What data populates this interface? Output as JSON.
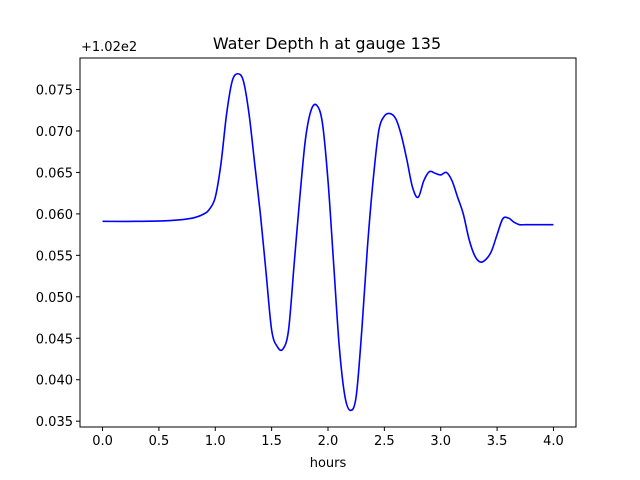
{
  "chart_data": {
    "type": "line",
    "title": "Water Depth h at gauge 135",
    "xlabel": "hours",
    "ylabel": "",
    "offset_label": "+1.02e2",
    "xlim": [
      -0.2,
      4.2
    ],
    "ylim": [
      0.0343,
      0.0788
    ],
    "xticks": [
      0.0,
      0.5,
      1.0,
      1.5,
      2.0,
      2.5,
      3.0,
      3.5,
      4.0
    ],
    "xtick_labels": [
      "0.0",
      "0.5",
      "1.0",
      "1.5",
      "2.0",
      "2.5",
      "3.0",
      "3.5",
      "4.0"
    ],
    "yticks": [
      0.035,
      0.04,
      0.045,
      0.05,
      0.055,
      0.06,
      0.065,
      0.07,
      0.075
    ],
    "ytick_labels": [
      "0.035",
      "0.040",
      "0.045",
      "0.050",
      "0.055",
      "0.060",
      "0.065",
      "0.070",
      "0.075"
    ],
    "grid": false,
    "series": [
      {
        "color": "#0000ff",
        "x": [
          0.0,
          0.3,
          0.6,
          0.8,
          0.9,
          0.95,
          1.0,
          1.05,
          1.1,
          1.15,
          1.2,
          1.25,
          1.3,
          1.35,
          1.4,
          1.45,
          1.5,
          1.55,
          1.6,
          1.65,
          1.7,
          1.75,
          1.8,
          1.85,
          1.9,
          1.95,
          2.0,
          2.05,
          2.1,
          2.15,
          2.2,
          2.25,
          2.3,
          2.35,
          2.4,
          2.45,
          2.5,
          2.55,
          2.6,
          2.65,
          2.7,
          2.75,
          2.8,
          2.85,
          2.9,
          2.95,
          3.0,
          3.05,
          3.1,
          3.15,
          3.2,
          3.25,
          3.3,
          3.35,
          3.4,
          3.45,
          3.5,
          3.55,
          3.6,
          3.65,
          3.7,
          3.75,
          3.8,
          3.85,
          3.9,
          3.95,
          4.0
        ],
        "y": [
          0.0591,
          0.0591,
          0.0592,
          0.0595,
          0.06,
          0.0606,
          0.062,
          0.066,
          0.072,
          0.076,
          0.0769,
          0.076,
          0.072,
          0.066,
          0.06,
          0.053,
          0.046,
          0.044,
          0.0437,
          0.046,
          0.054,
          0.062,
          0.069,
          0.0725,
          0.0731,
          0.071,
          0.064,
          0.054,
          0.044,
          0.038,
          0.0363,
          0.038,
          0.046,
          0.056,
          0.064,
          0.07,
          0.0718,
          0.0721,
          0.0715,
          0.0695,
          0.0665,
          0.0632,
          0.062,
          0.064,
          0.0651,
          0.0649,
          0.0647,
          0.065,
          0.064,
          0.062,
          0.06,
          0.057,
          0.055,
          0.0542,
          0.0545,
          0.0555,
          0.0575,
          0.0594,
          0.0595,
          0.059,
          0.0587,
          0.0587,
          0.0587,
          0.0587,
          0.0587,
          0.0587,
          0.0587
        ]
      }
    ]
  }
}
